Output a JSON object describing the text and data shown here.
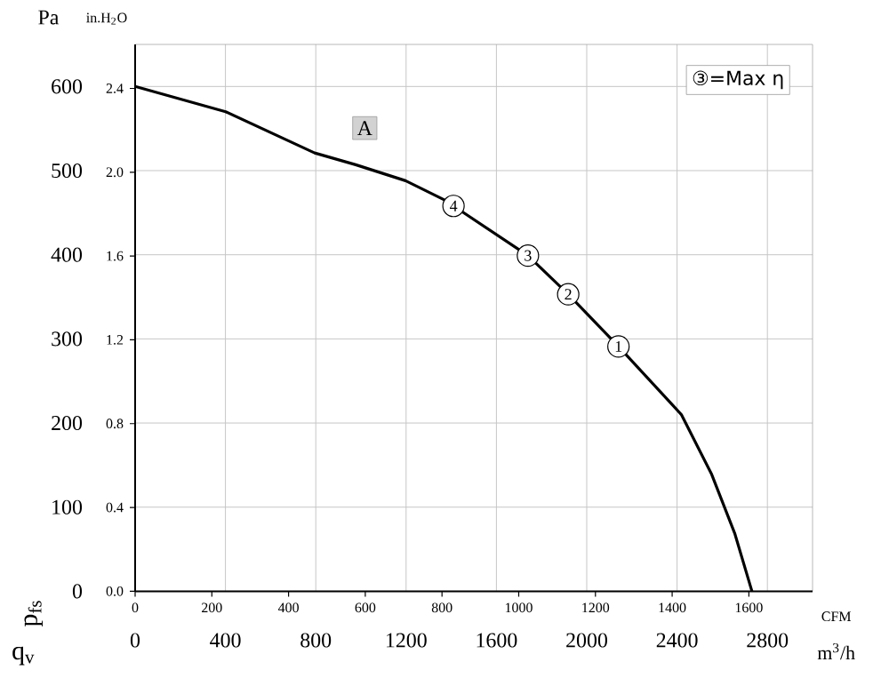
{
  "chart_data": {
    "type": "line",
    "xlabel": "CFM",
    "x2label": "m$^{3}$/h",
    "ylabel": "Pa",
    "y2label": "in.H$_{2}$O",
    "x": [
      0,
      236,
      468,
      575,
      705,
      807,
      830,
      1024,
      1129,
      1260,
      1424,
      1503,
      1563,
      1608
    ],
    "series": [
      {
        "color": "#000000",
        "values": [
          600,
          570,
          521,
          507,
          488,
          465,
          458,
          399,
          353,
          291,
          210,
          139,
          69,
          0
        ]
      }
    ],
    "xlim": [
      0,
      1766
    ],
    "xticks": [
      0,
      200,
      400,
      600,
      800,
      1000,
      1200,
      1400,
      1600
    ],
    "x2lim": [
      0,
      3000
    ],
    "x2ticks": [
      0,
      400,
      800,
      1200,
      1600,
      2000,
      2400,
      2800
    ],
    "ylim": [
      0,
      650
    ],
    "yticks": [
      0,
      100,
      200,
      300,
      400,
      500,
      600
    ],
    "y2lim": [
      0,
      2.61
    ],
    "y2ticks": [
      {
        "value": 0.0,
        "label": "0.0"
      },
      {
        "value": 0.4,
        "label": "0.4"
      },
      {
        "value": 0.8,
        "label": "0.8"
      },
      {
        "value": 1.2,
        "label": "1.2"
      },
      {
        "value": 1.6,
        "label": "1.6"
      },
      {
        "value": 2.0,
        "label": "2.0"
      },
      {
        "value": 2.4,
        "label": "2.4"
      }
    ],
    "grid": true,
    "annotations": [
      "A",
      "③=Max η",
      "p$_{fs}$",
      "q$_{v}$",
      {
        "text": "4",
        "x": 830,
        "y": 458
      },
      {
        "text": "3",
        "x": 1024,
        "y": 399
      },
      {
        "text": "2",
        "x": 1129,
        "y": 353
      },
      {
        "text": "1",
        "x": 1260,
        "y": 291
      }
    ]
  }
}
